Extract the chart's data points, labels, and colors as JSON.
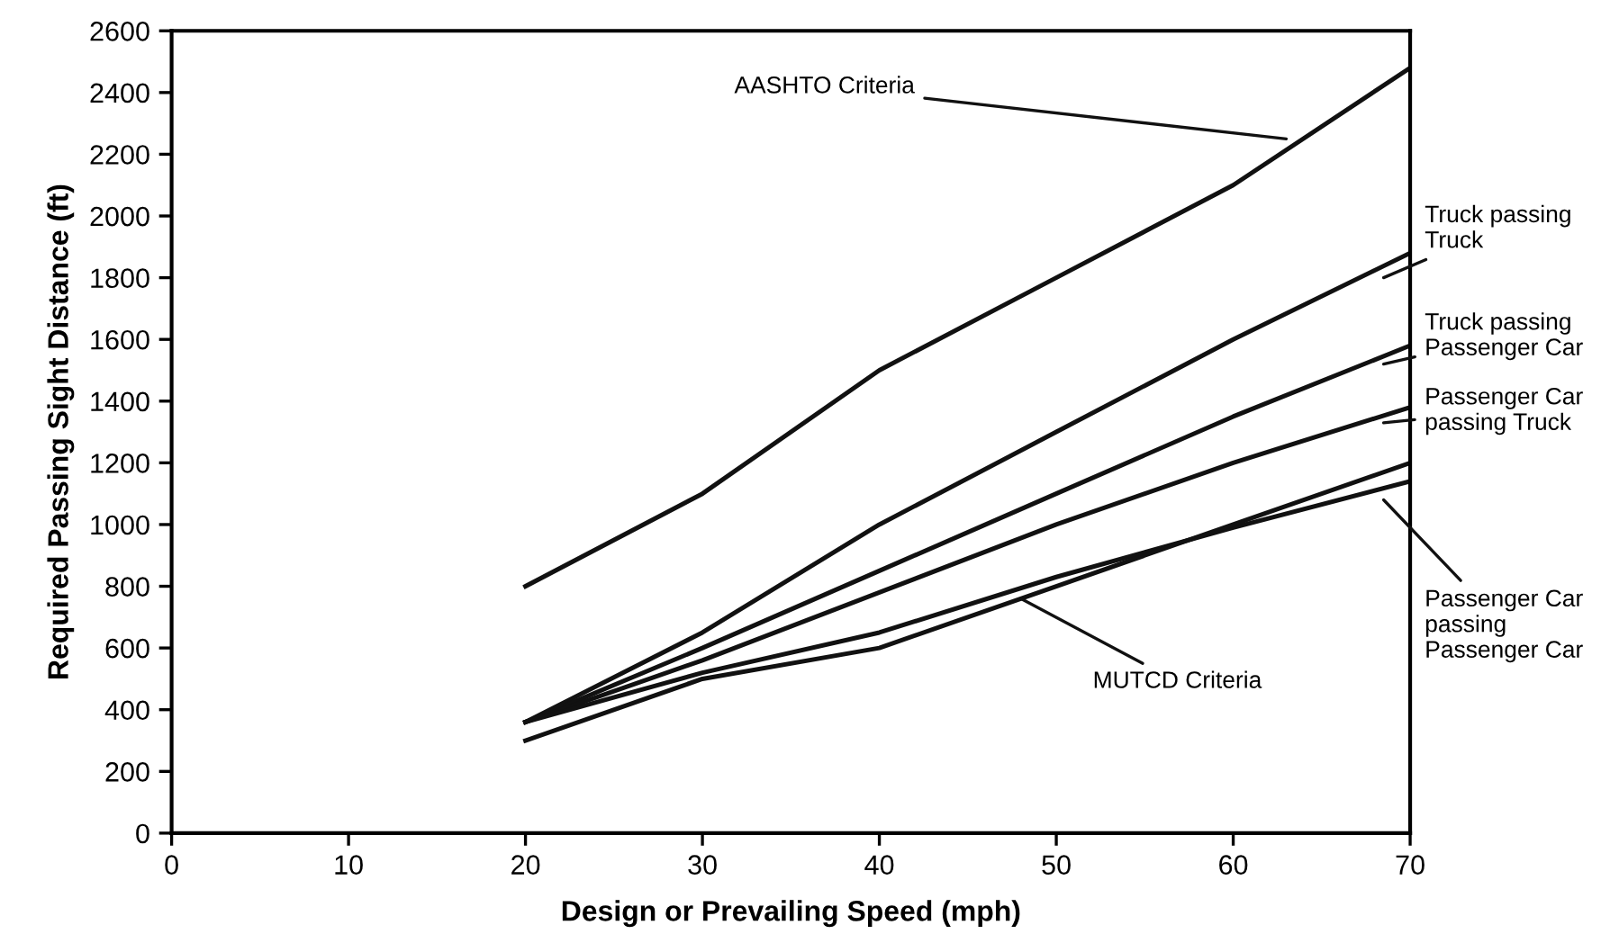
{
  "chart_data": {
    "type": "line",
    "xlabel": "Design or Prevailing Speed (mph)",
    "ylabel": "Required Passing Sight Distance (ft)",
    "x": [
      20,
      30,
      40,
      50,
      60,
      70
    ],
    "series": [
      {
        "color": "#111111",
        "values": [
          800,
          1100,
          1500,
          1800,
          2100,
          2480
        ]
      },
      {
        "color": "#111111",
        "values": [
          360,
          650,
          1000,
          1300,
          1600,
          1880
        ]
      },
      {
        "color": "#111111",
        "values": [
          360,
          600,
          850,
          1100,
          1350,
          1580
        ]
      },
      {
        "color": "#111111",
        "values": [
          360,
          560,
          780,
          1000,
          1200,
          1380
        ]
      },
      {
        "color": "#111111",
        "values": [
          360,
          520,
          650,
          830,
          990,
          1140
        ]
      },
      {
        "color": "#111111",
        "values": [
          300,
          500,
          600,
          800,
          1000,
          1200
        ]
      }
    ],
    "annotations": [
      {
        "text": "AASHTO Criteria",
        "x": 63,
        "y": 2250
      },
      {
        "text": "Truck passing\nTruck",
        "x": 68.5,
        "y": 1800
      },
      {
        "text": "Truck passing\nPassenger Car",
        "x": 68.5,
        "y": 1520
      },
      {
        "text": "Passenger Car\npassing Truck",
        "x": 68.5,
        "y": 1330
      },
      {
        "text": "Passenger Car\npassing\nPassenger Car",
        "x": 68.5,
        "y": 1080
      },
      {
        "text": "MUTCD Criteria",
        "x": 48,
        "y": 760
      }
    ],
    "xlim": [
      0,
      70
    ],
    "ylim": [
      0,
      2600
    ],
    "xticks": [
      0,
      10,
      20,
      30,
      40,
      50,
      60,
      70
    ],
    "yticks": [
      0,
      200,
      400,
      600,
      800,
      1000,
      1200,
      1400,
      1600,
      1800,
      2000,
      2200,
      2400,
      2600
    ],
    "grid": false,
    "legend": false,
    "marker": "none",
    "line_style": "solid"
  }
}
